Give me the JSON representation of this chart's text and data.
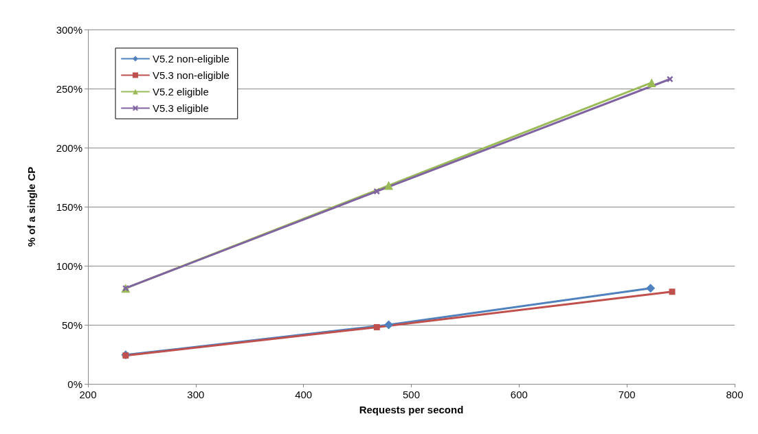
{
  "chart_data": {
    "type": "line",
    "xlabel": "Requests per second",
    "ylabel": "% of a single CP",
    "xlim": [
      200,
      800
    ],
    "xticks": [
      200,
      300,
      400,
      500,
      600,
      700,
      800
    ],
    "ylim": [
      0,
      300
    ],
    "yticks": [
      {
        "value": 0,
        "label": "0%"
      },
      {
        "value": 50,
        "label": "50%"
      },
      {
        "value": 100,
        "label": "100%"
      },
      {
        "value": 150,
        "label": "150%"
      },
      {
        "value": 200,
        "label": "200%"
      },
      {
        "value": 250,
        "label": "250%"
      },
      {
        "value": 300,
        "label": "300%"
      }
    ],
    "grid": "y",
    "legend": "top left",
    "series": [
      {
        "name": "V5.2 non-eligible",
        "color": "#4f81bd",
        "marker": "diamond",
        "x": [
          235,
          479,
          722
        ],
        "values": [
          24.5,
          50,
          81
        ]
      },
      {
        "name": "V5.3 non-eligible",
        "color": "#c0504d",
        "marker": "square",
        "x": [
          235,
          468,
          742
        ],
        "values": [
          24,
          48,
          78
        ]
      },
      {
        "name": "V5.2 eligible",
        "color": "#9bbb59",
        "marker": "triangle",
        "x": [
          235,
          479,
          723
        ],
        "values": [
          81,
          168,
          255
        ]
      },
      {
        "name": "V5.3 eligible",
        "color": "#8064a2",
        "marker": "cross",
        "x": [
          235,
          468,
          740
        ],
        "values": [
          81,
          163,
          258
        ]
      }
    ]
  }
}
